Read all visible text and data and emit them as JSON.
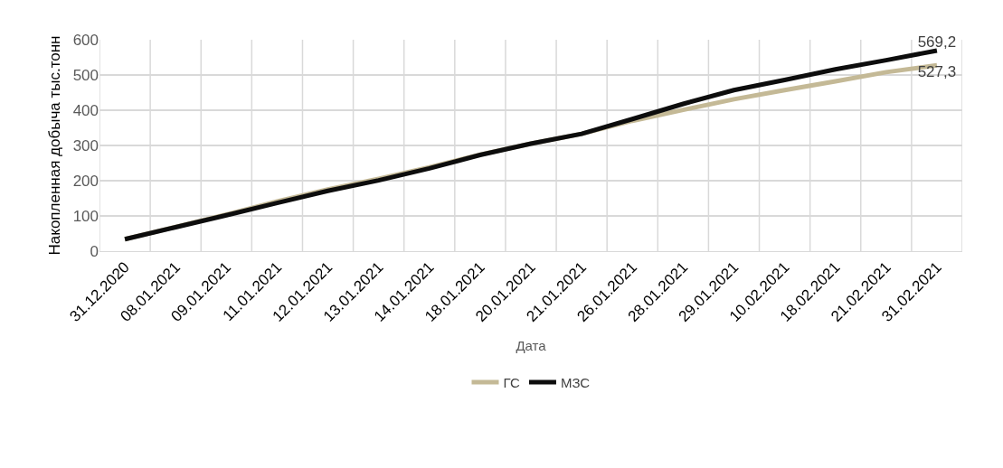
{
  "chart_data": {
    "type": "line",
    "xlabel": "Дата",
    "ylabel": "Накопленная добыча тыс.тонн",
    "categories": [
      "31.12.2020",
      "08.01.2021",
      "09.01.2021",
      "11.01.2021",
      "12.01.2021",
      "13.01.2021",
      "14.01.2021",
      "18.01.2021",
      "20.01.2021",
      "21.01.2021",
      "26.01.2021",
      "28.01.2021",
      "29.01.2021",
      "10.02.2021",
      "18.02.2021",
      "21.02.2021",
      "31.02.2021"
    ],
    "series": [
      {
        "name": "ГС",
        "color": "#c4b996",
        "values": [
          34,
          69,
          104,
          141,
          175,
          205,
          238,
          274,
          305,
          333,
          370,
          401,
          431,
          457,
          482,
          508,
          527.3
        ],
        "value_labels": [
          null,
          null,
          null,
          null,
          null,
          null,
          null,
          null,
          null,
          null,
          null,
          null,
          null,
          null,
          null,
          null,
          "527,3"
        ]
      },
      {
        "name": "МЗС",
        "color": "#0d0d0d",
        "values": [
          34,
          68,
          102,
          137,
          171,
          201,
          235,
          273,
          305,
          333,
          375,
          418,
          457,
          486,
          516,
          542,
          569.2
        ],
        "value_labels": [
          null,
          null,
          null,
          null,
          null,
          null,
          null,
          null,
          null,
          null,
          null,
          null,
          null,
          null,
          null,
          null,
          "569,2"
        ]
      }
    ],
    "ylim": [
      0,
      600
    ],
    "yticks": [
      0,
      100,
      200,
      300,
      400,
      500,
      600
    ],
    "grid": true,
    "legend": "bottom",
    "marker": "none",
    "line_style": "solid"
  }
}
